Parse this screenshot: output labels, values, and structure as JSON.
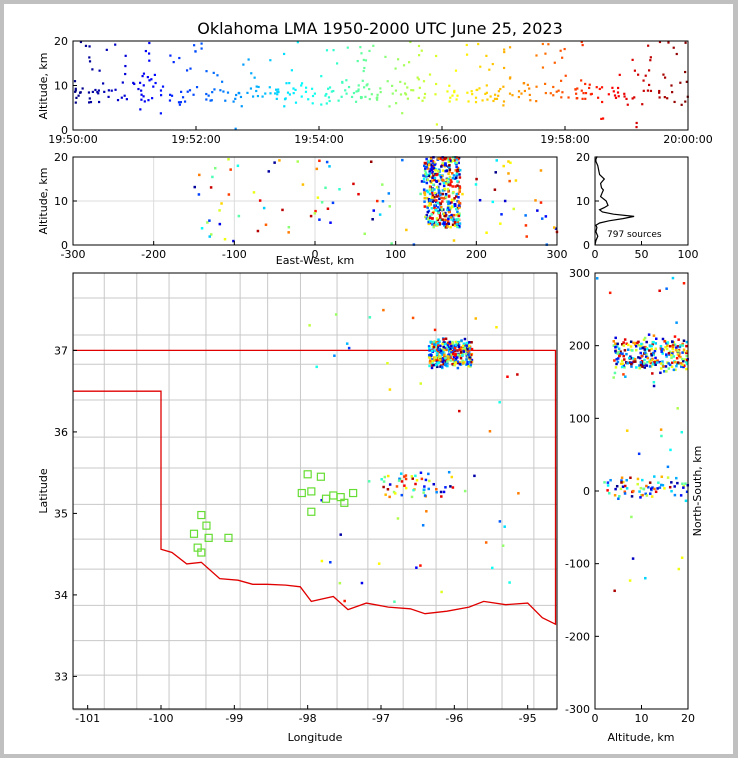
{
  "chart_data": [
    {
      "type": "scatter",
      "name": "time-height",
      "title": "Oklahoma LMA 1950-2000 UTC June 25, 2023",
      "ylabel": "Altitude, km",
      "xlabel": "",
      "x_ticks": [
        "19:50:00",
        "19:52:00",
        "19:54:00",
        "19:56:00",
        "19:58:00",
        "20:00:00"
      ],
      "x_range_minutes": [
        0,
        10
      ],
      "y_ticks": [
        0,
        10,
        20
      ],
      "ylim": [
        0,
        20
      ],
      "colormap": "jet (by time)"
    },
    {
      "type": "scatter",
      "name": "east-west-altitude",
      "xlabel": "East-West, km",
      "ylabel": "Altitude, km",
      "x_ticks": [
        -300,
        -200,
        -100,
        0,
        100,
        200,
        300
      ],
      "xlim": [
        -300,
        300
      ],
      "y_ticks": [
        0,
        10,
        20
      ],
      "ylim": [
        0,
        20
      ],
      "grid": true
    },
    {
      "type": "line",
      "name": "altitude-histogram",
      "annotation": "797 sources",
      "x_ticks": [
        0,
        50,
        100
      ],
      "xlim": [
        0,
        100
      ],
      "y_ticks": [
        0,
        10,
        20
      ],
      "ylim": [
        0,
        20
      ],
      "x": [
        0,
        1,
        3,
        1,
        2,
        1,
        5,
        15,
        30,
        42,
        20,
        8,
        5,
        10,
        14,
        12,
        6,
        8,
        9,
        7,
        6,
        10,
        5,
        4,
        3,
        2,
        1,
        1,
        2,
        1
      ],
      "y": [
        0,
        1,
        2,
        3,
        4,
        4.5,
        5,
        5.5,
        6,
        6.5,
        7,
        7.5,
        8,
        8.5,
        9,
        10,
        11,
        12,
        12.5,
        13,
        14,
        15,
        16,
        17,
        18,
        18.5,
        19,
        19.5,
        20,
        20
      ]
    },
    {
      "type": "scatter",
      "name": "plan-view-map",
      "xlabel": "Longitude",
      "ylabel": "Latitude",
      "x_ticks": [
        -101,
        -100,
        -99,
        -98,
        -97,
        -96,
        -95
      ],
      "xlim": [
        -101.2,
        -94.6
      ],
      "y_ticks": [
        33,
        34,
        35,
        36,
        37
      ],
      "ylim": [
        32.6,
        37.95
      ],
      "stations": [
        [
          -99.45,
          34.98
        ],
        [
          -99.38,
          34.85
        ],
        [
          -99.55,
          34.75
        ],
        [
          -99.35,
          34.7
        ],
        [
          -99.5,
          34.58
        ],
        [
          -99.45,
          34.52
        ],
        [
          -99.08,
          34.7
        ],
        [
          -98.0,
          35.48
        ],
        [
          -98.08,
          35.25
        ],
        [
          -97.95,
          35.27
        ],
        [
          -97.82,
          35.45
        ],
        [
          -97.75,
          35.18
        ],
        [
          -97.65,
          35.22
        ],
        [
          -97.55,
          35.2
        ],
        [
          -97.5,
          35.13
        ],
        [
          -97.38,
          35.25
        ],
        [
          -97.95,
          35.02
        ]
      ]
    },
    {
      "type": "scatter",
      "name": "north-south-altitude",
      "xlabel": "Altitude, km",
      "ylabel": "North-South, km",
      "x_ticks": [
        0,
        10,
        20
      ],
      "xlim": [
        0,
        20
      ],
      "y_ticks": [
        -300,
        -200,
        -100,
        0,
        100,
        200,
        300
      ],
      "ylim": [
        -300,
        300
      ]
    }
  ]
}
